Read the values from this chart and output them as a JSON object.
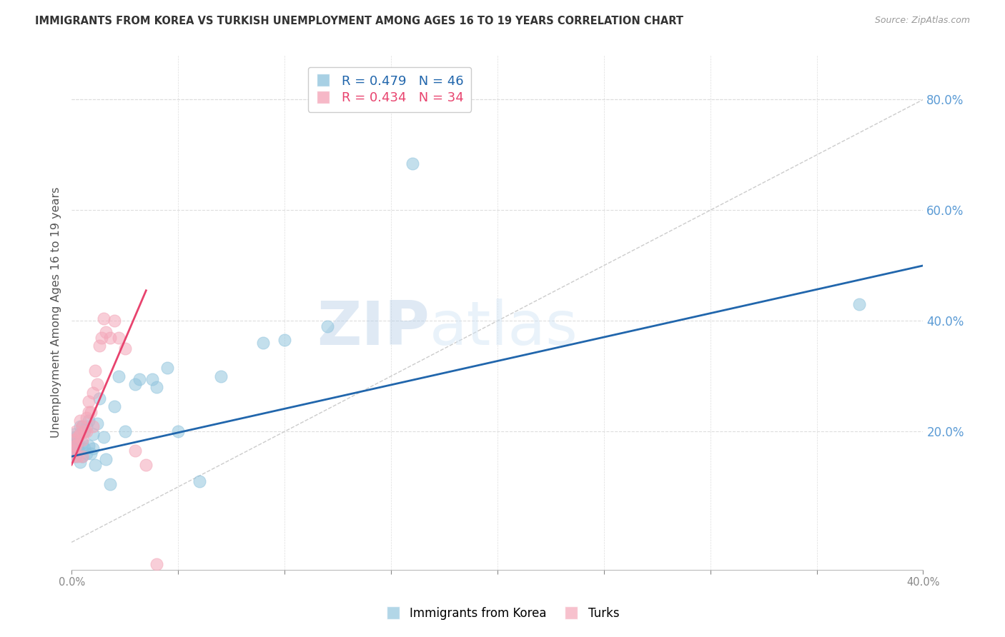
{
  "title": "IMMIGRANTS FROM KOREA VS TURKISH UNEMPLOYMENT AMONG AGES 16 TO 19 YEARS CORRELATION CHART",
  "source": "Source: ZipAtlas.com",
  "ylabel": "Unemployment Among Ages 16 to 19 years",
  "xlim": [
    0.0,
    0.4
  ],
  "ylim": [
    -0.05,
    0.88
  ],
  "plot_ylim": [
    0.0,
    0.88
  ],
  "yticks_right": [
    0.2,
    0.4,
    0.6,
    0.8
  ],
  "xticks": [
    0.0,
    0.05,
    0.1,
    0.15,
    0.2,
    0.25,
    0.3,
    0.35,
    0.4
  ],
  "xtick_labels_show": [
    true,
    false,
    false,
    false,
    false,
    false,
    false,
    false,
    true
  ],
  "korea_R": 0.479,
  "korea_N": 46,
  "turk_R": 0.434,
  "turk_N": 34,
  "korea_color": "#92c5de",
  "turk_color": "#f4a7b9",
  "korea_line_color": "#2166ac",
  "turk_line_color": "#e8436e",
  "diagonal_color": "#cccccc",
  "grid_color": "#dddddd",
  "background": "#ffffff",
  "watermark_zip": "ZIP",
  "watermark_atlas": "atlas",
  "korea_x": [
    0.0005,
    0.001,
    0.001,
    0.0015,
    0.002,
    0.002,
    0.002,
    0.003,
    0.003,
    0.003,
    0.004,
    0.004,
    0.005,
    0.005,
    0.005,
    0.006,
    0.006,
    0.007,
    0.007,
    0.008,
    0.008,
    0.009,
    0.01,
    0.01,
    0.011,
    0.012,
    0.013,
    0.015,
    0.016,
    0.018,
    0.02,
    0.022,
    0.025,
    0.03,
    0.032,
    0.038,
    0.04,
    0.045,
    0.05,
    0.06,
    0.07,
    0.09,
    0.1,
    0.12,
    0.16,
    0.37
  ],
  "korea_y": [
    0.175,
    0.16,
    0.195,
    0.18,
    0.155,
    0.175,
    0.19,
    0.165,
    0.18,
    0.17,
    0.145,
    0.21,
    0.155,
    0.18,
    0.21,
    0.17,
    0.2,
    0.16,
    0.21,
    0.175,
    0.22,
    0.16,
    0.195,
    0.17,
    0.14,
    0.215,
    0.26,
    0.19,
    0.15,
    0.105,
    0.245,
    0.3,
    0.2,
    0.285,
    0.295,
    0.295,
    0.28,
    0.315,
    0.2,
    0.11,
    0.3,
    0.36,
    0.365,
    0.39,
    0.685,
    0.43
  ],
  "turk_x": [
    0.0005,
    0.001,
    0.001,
    0.0015,
    0.002,
    0.002,
    0.003,
    0.003,
    0.004,
    0.004,
    0.005,
    0.005,
    0.005,
    0.006,
    0.007,
    0.007,
    0.008,
    0.008,
    0.009,
    0.01,
    0.01,
    0.011,
    0.012,
    0.013,
    0.014,
    0.015,
    0.016,
    0.018,
    0.02,
    0.022,
    0.025,
    0.03,
    0.035,
    0.04
  ],
  "turk_y": [
    0.165,
    0.155,
    0.185,
    0.175,
    0.2,
    0.175,
    0.155,
    0.19,
    0.195,
    0.22,
    0.155,
    0.185,
    0.21,
    0.2,
    0.2,
    0.225,
    0.235,
    0.255,
    0.235,
    0.21,
    0.27,
    0.31,
    0.285,
    0.355,
    0.37,
    0.405,
    0.38,
    0.37,
    0.4,
    0.37,
    0.35,
    0.165,
    0.14,
    -0.04
  ],
  "korea_line": {
    "x0": 0.0,
    "x1": 0.4,
    "y0": 0.155,
    "y1": 0.5
  },
  "turk_line": {
    "x0": 0.0,
    "x1": 0.035,
    "y0": 0.14,
    "y1": 0.455
  }
}
